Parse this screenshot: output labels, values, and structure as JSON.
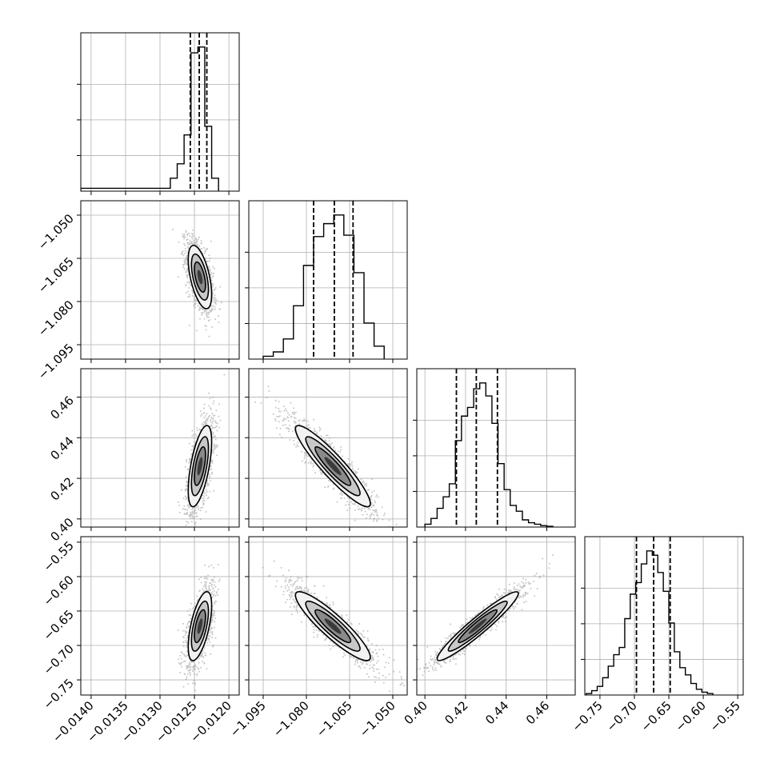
{
  "chart_data": {
    "type": "corner",
    "parameters": [
      {
        "range": [
          -0.01415,
          -0.01185
        ],
        "ticks": [
          -0.014,
          -0.0135,
          -0.013,
          -0.0125,
          -0.012
        ],
        "tick_labels": [
          "−0.0140",
          "−0.0135",
          "−0.0130",
          "−0.0125",
          "−0.0120"
        ],
        "quantiles": [
          -0.01256,
          -0.01243,
          -0.01232
        ]
      },
      {
        "range": [
          -1.1,
          -1.045
        ],
        "ticks": [
          -1.095,
          -1.08,
          -1.065,
          -1.05
        ],
        "tick_labels": [
          "−1.095",
          "−1.080",
          "−1.065",
          "−1.050"
        ],
        "quantiles": [
          -1.0775,
          -1.0703,
          -1.0638
        ]
      },
      {
        "range": [
          0.396,
          0.474
        ],
        "ticks": [
          0.4,
          0.42,
          0.44,
          0.46
        ],
        "tick_labels": [
          "0.40",
          "0.42",
          "0.44",
          "0.46"
        ],
        "quantiles": [
          0.4155,
          0.4253,
          0.4357
        ]
      },
      {
        "range": [
          -0.772,
          -0.542
        ],
        "ticks": [
          -0.75,
          -0.7,
          -0.65,
          -0.6,
          -0.55
        ],
        "tick_labels": [
          "−0.75",
          "−0.70",
          "−0.65",
          "−0.60",
          "−0.55"
        ],
        "quantiles": [
          -0.697,
          -0.672,
          -0.648
        ]
      }
    ],
    "histograms": [
      {
        "edges": [
          -0.01415,
          -0.01285,
          -0.01275,
          -0.01265,
          -0.01255,
          -0.01245,
          -0.01235,
          -0.01225,
          -0.01215
        ],
        "values": [
          0.02,
          0.09,
          0.19,
          0.39,
          0.96,
          1.0,
          0.45,
          0.09
        ]
      },
      {
        "edges": [
          -1.095,
          -1.0915,
          -1.088,
          -1.0845,
          -1.081,
          -1.0775,
          -1.074,
          -1.0705,
          -1.067,
          -1.0635,
          -1.06,
          -1.0565,
          -1.053
        ],
        "values": [
          0.02,
          0.05,
          0.14,
          0.37,
          0.65,
          0.85,
          0.94,
          1.0,
          0.86,
          0.6,
          0.25,
          0.09
        ]
      },
      {
        "edges": [
          0.4,
          0.403,
          0.406,
          0.409,
          0.412,
          0.415,
          0.418,
          0.421,
          0.424,
          0.427,
          0.43,
          0.433,
          0.436,
          0.439,
          0.442,
          0.445,
          0.448,
          0.451,
          0.454,
          0.457,
          0.46,
          0.463
        ],
        "values": [
          0.02,
          0.06,
          0.13,
          0.21,
          0.3,
          0.6,
          0.77,
          0.83,
          0.96,
          1.0,
          0.91,
          0.72,
          0.44,
          0.26,
          0.15,
          0.11,
          0.05,
          0.03,
          0.02,
          0.01,
          0.005
        ]
      },
      {
        "edges": [
          -0.77,
          -0.762,
          -0.754,
          -0.746,
          -0.738,
          -0.73,
          -0.722,
          -0.714,
          -0.706,
          -0.698,
          -0.69,
          -0.682,
          -0.674,
          -0.666,
          -0.658,
          -0.65,
          -0.642,
          -0.634,
          -0.626,
          -0.618,
          -0.61,
          -0.602,
          -0.594,
          -0.586
        ],
        "values": [
          0.01,
          0.03,
          0.06,
          0.12,
          0.2,
          0.28,
          0.33,
          0.53,
          0.7,
          0.78,
          0.91,
          1.0,
          0.97,
          0.85,
          0.72,
          0.5,
          0.3,
          0.19,
          0.14,
          0.08,
          0.04,
          0.02,
          0.01
        ]
      }
    ],
    "correlations": [
      {
        "pair": [
          1,
          0
        ],
        "mean": [
          -0.01242,
          -1.0715
        ],
        "sd": [
          8.5e-05,
          0.0055
        ],
        "corr": -0.55
      },
      {
        "pair": [
          2,
          0
        ],
        "mean": [
          -0.01242,
          0.426
        ],
        "sd": [
          8.5e-05,
          0.01
        ],
        "corr": 0.6
      },
      {
        "pair": [
          2,
          1
        ],
        "mean": [
          -1.0708,
          0.426
        ],
        "sd": [
          0.0065,
          0.01
        ],
        "corr": -0.92
      },
      {
        "pair": [
          3,
          0
        ],
        "mean": [
          -0.01242,
          -0.672
        ],
        "sd": [
          8.5e-05,
          0.025
        ],
        "corr": 0.6
      },
      {
        "pair": [
          3,
          1
        ],
        "mean": [
          -1.0708,
          -0.672
        ],
        "sd": [
          0.0065,
          0.025
        ],
        "corr": -0.9
      },
      {
        "pair": [
          3,
          2
        ],
        "mean": [
          0.426,
          -0.672
        ],
        "sd": [
          0.01,
          0.025
        ],
        "corr": 0.95
      }
    ],
    "grid": true,
    "colors": {
      "line": "#000000",
      "points": "#9a9a9a",
      "grid": "#b0b0b0"
    }
  }
}
